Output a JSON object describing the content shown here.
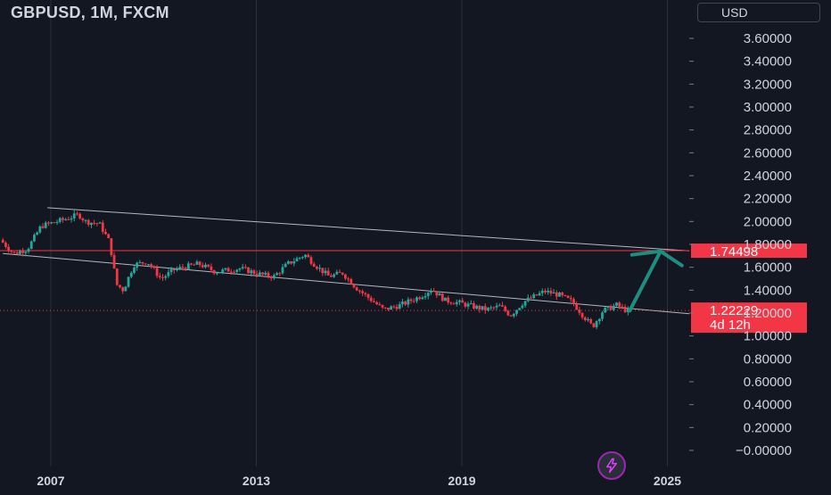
{
  "header": {
    "symbol_title": "GBPUSD, 1M, FXCM",
    "currency_label": "USD"
  },
  "icons": {
    "flash": "lightning-bolt-icon",
    "arrow": "up-arrow-icon"
  },
  "colors": {
    "background": "#131722",
    "up_candle": "#26a69a",
    "down_candle": "#f23645",
    "arrow": "#1e8e80",
    "trendline": "#d1d4dc",
    "resistance": "#f23645",
    "label_bg": "#f23645",
    "axis_text": "#d1d4dc",
    "grid": "#2a2e39"
  },
  "chart_data": {
    "type": "candlestick",
    "symbol": "GBPUSD",
    "timeframe": "1M",
    "source": "FXCM",
    "ylim": [
      -0.1,
      3.75
    ],
    "y_ticks": [
      {
        "value": 3.6,
        "label": "3.60000"
      },
      {
        "value": 3.4,
        "label": "3.40000"
      },
      {
        "value": 3.2,
        "label": "3.20000"
      },
      {
        "value": 3.0,
        "label": "3.00000"
      },
      {
        "value": 2.8,
        "label": "2.80000"
      },
      {
        "value": 2.6,
        "label": "2.60000"
      },
      {
        "value": 2.4,
        "label": "2.40000"
      },
      {
        "value": 2.2,
        "label": "2.20000"
      },
      {
        "value": 2.0,
        "label": "2.00000"
      },
      {
        "value": 1.8,
        "label": "1.80000"
      },
      {
        "value": 1.6,
        "label": "1.60000"
      },
      {
        "value": 1.4,
        "label": "1.40000"
      },
      {
        "value": 1.2,
        "label": "1.20000"
      },
      {
        "value": 1.0,
        "label": "1.00000"
      },
      {
        "value": 0.8,
        "label": "0.80000"
      },
      {
        "value": 0.6,
        "label": "0.60000"
      },
      {
        "value": 0.4,
        "label": "0.40000"
      },
      {
        "value": 0.2,
        "label": "0.20000"
      },
      {
        "value": 0.0,
        "label": "−0.00000"
      }
    ],
    "x_ticks": [
      {
        "year": 2007,
        "label": "2007"
      },
      {
        "year": 2013,
        "label": "2013"
      },
      {
        "year": 2019,
        "label": "2019"
      },
      {
        "year": 2025,
        "label": "2025"
      }
    ],
    "price_path": [
      [
        2005.6,
        1.84
      ],
      [
        2006.0,
        1.72
      ],
      [
        2006.4,
        1.76
      ],
      [
        2006.8,
        1.96
      ],
      [
        2007.5,
        2.02
      ],
      [
        2007.9,
        2.06
      ],
      [
        2008.1,
        2.0
      ],
      [
        2008.5,
        1.98
      ],
      [
        2008.8,
        1.82
      ],
      [
        2009.0,
        1.45
      ],
      [
        2009.2,
        1.4
      ],
      [
        2009.5,
        1.62
      ],
      [
        2009.9,
        1.65
      ],
      [
        2010.3,
        1.5
      ],
      [
        2010.7,
        1.58
      ],
      [
        2011.4,
        1.63
      ],
      [
        2011.9,
        1.56
      ],
      [
        2012.6,
        1.59
      ],
      [
        2013.3,
        1.53
      ],
      [
        2013.6,
        1.52
      ],
      [
        2014.0,
        1.63
      ],
      [
        2014.5,
        1.71
      ],
      [
        2014.8,
        1.62
      ],
      [
        2015.2,
        1.52
      ],
      [
        2015.6,
        1.55
      ],
      [
        2016.0,
        1.42
      ],
      [
        2016.5,
        1.3
      ],
      [
        2016.8,
        1.23
      ],
      [
        2017.3,
        1.27
      ],
      [
        2017.9,
        1.35
      ],
      [
        2018.2,
        1.41
      ],
      [
        2018.6,
        1.31
      ],
      [
        2019.0,
        1.29
      ],
      [
        2019.5,
        1.25
      ],
      [
        2019.8,
        1.23
      ],
      [
        2020.2,
        1.26
      ],
      [
        2020.5,
        1.18
      ],
      [
        2020.9,
        1.3
      ],
      [
        2021.5,
        1.39
      ],
      [
        2021.9,
        1.36
      ],
      [
        2022.3,
        1.3
      ],
      [
        2022.7,
        1.15
      ],
      [
        2022.9,
        1.08
      ],
      [
        2023.2,
        1.22
      ],
      [
        2023.6,
        1.27
      ],
      [
        2023.9,
        1.22
      ]
    ],
    "resistance_level": {
      "value": 1.74498,
      "label": "1.74498"
    },
    "current_price": {
      "value": 1.22229,
      "label": "1.22229",
      "countdown": "4d 12h"
    },
    "trendlines": [
      {
        "name": "",
        "points": [
          [
            2006.9,
            2.12
          ],
          [
            2025.8,
            1.74
          ]
        ]
      },
      {
        "name": "",
        "points": [
          [
            2005.6,
            1.72
          ],
          [
            2025.8,
            1.19
          ]
        ]
      }
    ],
    "projection_arrow": {
      "from": [
        2023.9,
        1.22
      ],
      "to": [
        2024.8,
        1.74
      ]
    },
    "grid": true
  }
}
